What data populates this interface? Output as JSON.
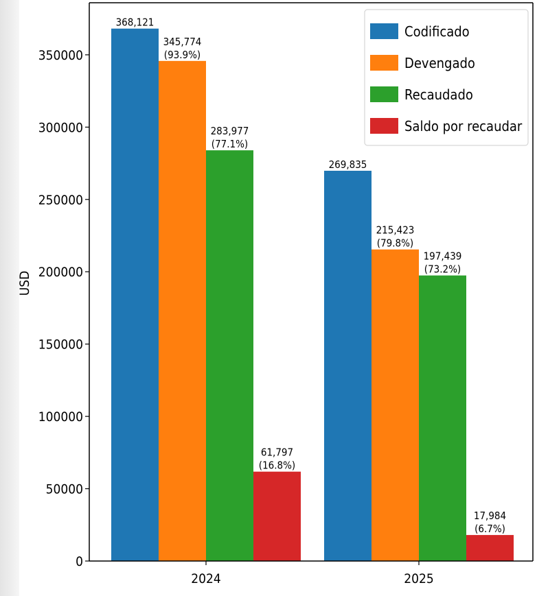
{
  "chart_data": {
    "type": "bar",
    "categories": [
      "2024",
      "2025"
    ],
    "series": [
      {
        "name": "Codificado",
        "color": "#1f77b4",
        "values": [
          368121,
          269835
        ],
        "labels": [
          "368,121",
          "269,835"
        ]
      },
      {
        "name": "Devengado",
        "color": "#ff7f0e",
        "values": [
          345774,
          215423
        ],
        "labels": [
          "345,774\n(93.9%)",
          "215,423\n(79.8%)"
        ]
      },
      {
        "name": "Recaudado",
        "color": "#2ca02c",
        "values": [
          283977,
          197439
        ],
        "labels": [
          "283,977\n(77.1%)",
          "197,439\n(73.2%)"
        ]
      },
      {
        "name": "Saldo por recaudar",
        "color": "#d62728",
        "values": [
          61797,
          17984
        ],
        "labels": [
          "61,797\n(16.8%)",
          "17,984\n(6.7%)"
        ]
      }
    ],
    "title": "",
    "xlabel": "",
    "ylabel": "USD",
    "ylim": [
      0,
      386000
    ],
    "yticks": [
      0,
      50000,
      100000,
      150000,
      200000,
      250000,
      300000,
      350000
    ],
    "grid": false,
    "legend_position": "top-right"
  }
}
